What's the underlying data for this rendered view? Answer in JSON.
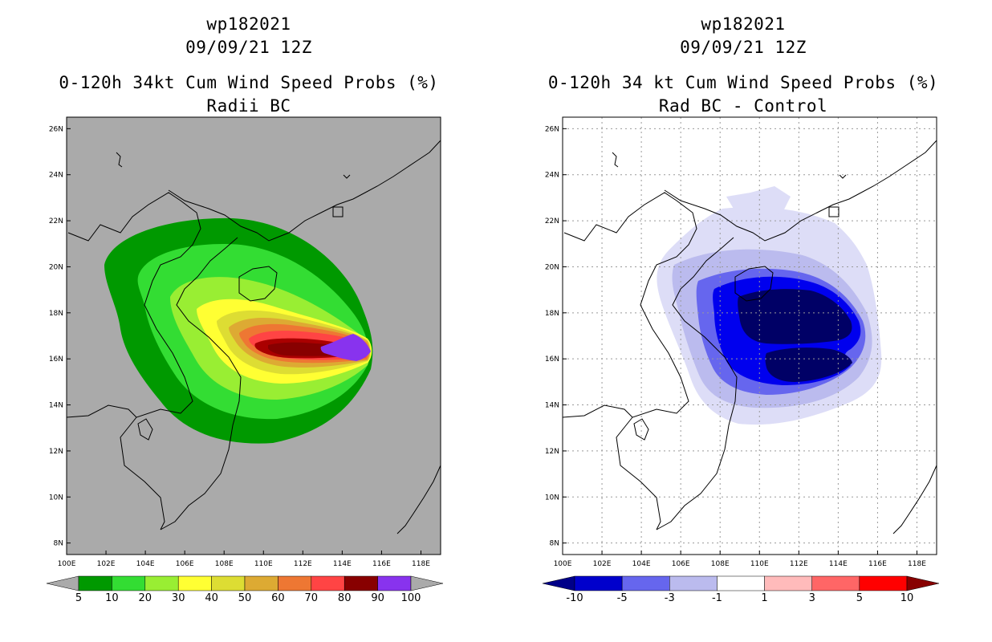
{
  "left_panel": {
    "title_lines": [
      "wp182021",
      "09/09/21 12Z",
      "0-120h 34kt Cum Wind Speed Probs (%)",
      "Radii BC"
    ],
    "colorbar": {
      "colors": [
        "#009900",
        "#33dd33",
        "#99ee33",
        "#ffff33",
        "#dddd33",
        "#ddaa33",
        "#ee7733",
        "#ff4444",
        "#880000",
        "#8833ee"
      ],
      "labels": [
        "5",
        "10",
        "20",
        "30",
        "40",
        "50",
        "60",
        "70",
        "80",
        "90",
        "100"
      ]
    }
  },
  "right_panel": {
    "title_lines": [
      "wp182021",
      "09/09/21 12Z",
      "0-120h 34 kt Cum Wind Speed Probs (%)",
      "Rad BC - Control"
    ],
    "colorbar": {
      "colors": [
        "#0000cc",
        "#6666ee",
        "#bbbbee",
        "#ffffff",
        "#ffbbbb",
        "#ff6666",
        "#ff0000"
      ],
      "labels": [
        "-10",
        "-5",
        "-3",
        "-1",
        "1",
        "3",
        "5",
        "10"
      ]
    }
  },
  "chart_data": [
    {
      "type": "filled-contour-map",
      "title": "0-120h 34kt Cum Wind Speed Probs (%) — Radii BC",
      "storm": "wp182021",
      "valid": "09/09/21 12Z",
      "lon_range": [
        100,
        119
      ],
      "lat_range": [
        7.5,
        26.5
      ],
      "lon_ticks": [
        "100E",
        "102E",
        "104E",
        "106E",
        "108E",
        "110E",
        "112E",
        "114E",
        "116E",
        "118E"
      ],
      "lat_ticks": [
        "8N",
        "10N",
        "12N",
        "14N",
        "16N",
        "18N",
        "20N",
        "22N",
        "24N",
        "26N"
      ],
      "contour_levels": [
        5,
        10,
        20,
        30,
        40,
        50,
        60,
        70,
        80,
        90,
        100
      ],
      "max_region": {
        "lon": 115.5,
        "lat": 16.5,
        "value_range": "90-100"
      }
    },
    {
      "type": "filled-contour-map",
      "title": "0-120h 34 kt Cum Wind Speed Probs (%) — Rad BC - Control",
      "storm": "wp182021",
      "valid": "09/09/21 12Z",
      "lon_range": [
        100,
        119
      ],
      "lat_range": [
        7.5,
        26.5
      ],
      "lon_ticks": [
        "100E",
        "102E",
        "104E",
        "106E",
        "108E",
        "110E",
        "112E",
        "114E",
        "116E",
        "118E"
      ],
      "lat_ticks": [
        "8N",
        "10N",
        "12N",
        "14N",
        "16N",
        "18N",
        "20N",
        "22N",
        "24N",
        "26N"
      ],
      "contour_levels": [
        -10,
        -5,
        -3,
        -1,
        1,
        3,
        5,
        10
      ],
      "min_regions": [
        {
          "lon": 112,
          "lat": 18,
          "value": "< -10"
        },
        {
          "lon": 112,
          "lat": 15.5,
          "value": "< -10"
        }
      ]
    }
  ]
}
